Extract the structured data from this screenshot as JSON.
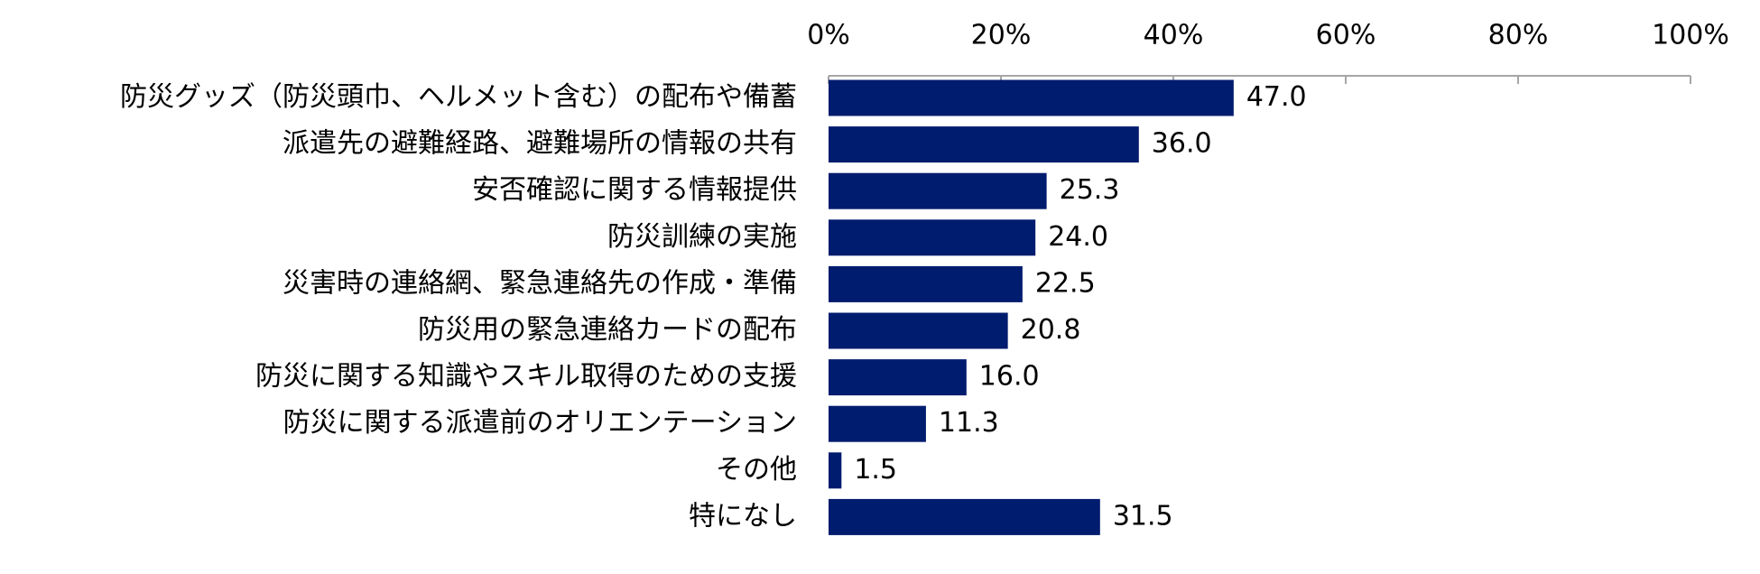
{
  "chart_data": {
    "type": "bar",
    "orientation": "horizontal",
    "title": "",
    "xlabel": "",
    "ylabel": "",
    "xlim": [
      0,
      100
    ],
    "tick_values": [
      0,
      20,
      40,
      60,
      80,
      100
    ],
    "tick_labels": [
      "0%",
      "20%",
      "40%",
      "60%",
      "80%",
      "100%"
    ],
    "axis_position": "top",
    "grid": false,
    "legend": "none",
    "bar_color": "#001C6E",
    "axis_color": "#A6A6A6",
    "categories": [
      "防災グッズ（防災頭巾、ヘルメット含む）の配布や備蓄",
      "派遣先の避難経路、避難場所の情報の共有",
      "安否確認に関する情報提供",
      "防災訓練の実施",
      "災害時の連絡網、緊急連絡先の作成・準備",
      "防災用の緊急連絡カードの配布",
      "防災に関する知識やスキル取得のための支援",
      "防災に関する派遣前のオリエンテーション",
      "その他",
      "特になし"
    ],
    "values": [
      47.0,
      36.0,
      25.3,
      24.0,
      22.5,
      20.8,
      16.0,
      11.3,
      1.5,
      31.5
    ],
    "value_labels": [
      "47.0",
      "36.0",
      "25.3",
      "24.0",
      "22.5",
      "20.8",
      "16.0",
      "11.3",
      "1.5",
      "31.5"
    ]
  }
}
